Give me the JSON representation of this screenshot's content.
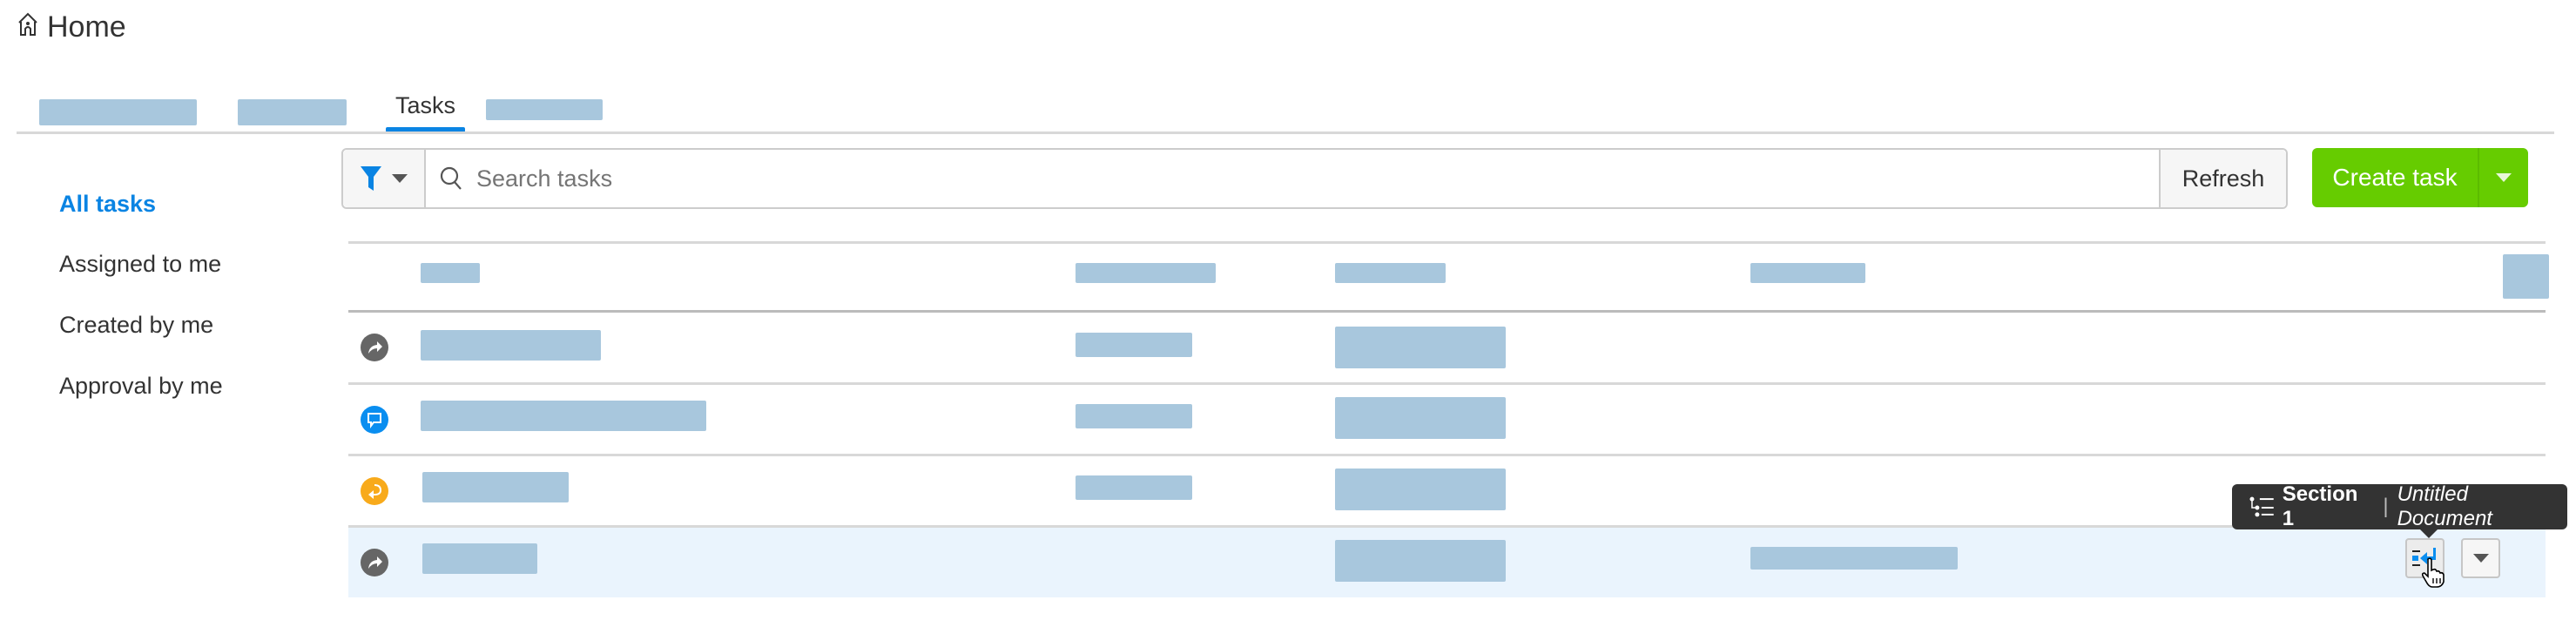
{
  "header": {
    "title": "Home",
    "icon": "home-icon"
  },
  "tabs": [
    {
      "label": "Tasks",
      "active": true
    }
  ],
  "sidebar": {
    "items": [
      {
        "label": "All tasks",
        "active": true
      },
      {
        "label": "Assigned to me"
      },
      {
        "label": "Created by me"
      },
      {
        "label": "Approval by me"
      }
    ]
  },
  "toolbar": {
    "search_placeholder": "Search tasks",
    "search_value": "",
    "refresh_label": "Refresh",
    "create_label": "Create task"
  },
  "rows": [
    {
      "icon": "forward-icon",
      "icon_color": "#666666"
    },
    {
      "icon": "comment-icon",
      "icon_color": "#0a8ef0"
    },
    {
      "icon": "return-icon",
      "icon_color": "#f8aa1b"
    },
    {
      "icon": "forward-icon",
      "icon_color": "#666666",
      "hovered": true
    }
  ],
  "tooltip": {
    "section": "Section 1",
    "separator": "|",
    "document": "Untitled Document"
  },
  "colors": {
    "accent": "#0a84e3",
    "create_button": "#66cc00",
    "hover_row": "#eaf4fd",
    "redacted": "#a8c7dd"
  }
}
